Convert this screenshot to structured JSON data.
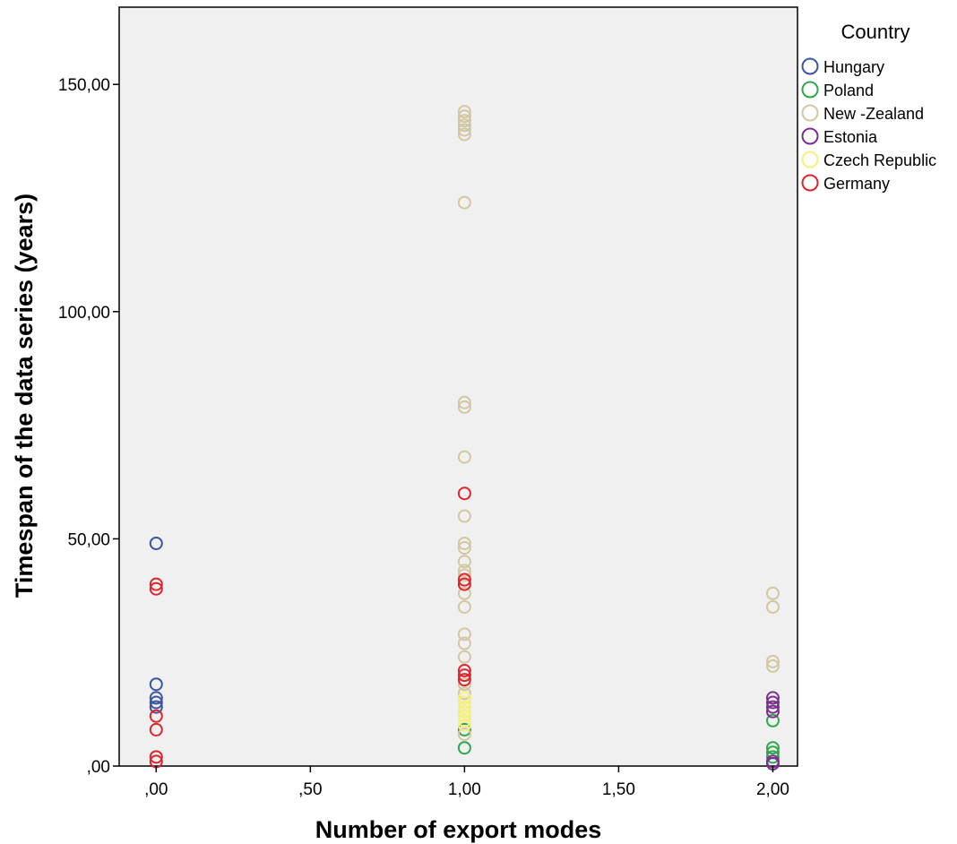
{
  "chart_data": {
    "type": "scatter",
    "xlabel": "Number of export modes",
    "ylabel": "Timespan of the data series (years)",
    "xlim": [
      -0.12,
      2.08
    ],
    "ylim": [
      0,
      167
    ],
    "x_ticks": [
      {
        "value": 0,
        "label": ",00"
      },
      {
        "value": 0.5,
        "label": ",50"
      },
      {
        "value": 1,
        "label": "1,00"
      },
      {
        "value": 1.5,
        "label": "1,50"
      },
      {
        "value": 2,
        "label": "2,00"
      }
    ],
    "y_ticks": [
      {
        "value": 0,
        "label": ",00"
      },
      {
        "value": 50,
        "label": "50,00"
      },
      {
        "value": 100,
        "label": "100,00"
      },
      {
        "value": 150,
        "label": "150,00"
      }
    ],
    "grid": false,
    "background_color": "#f0f0f0",
    "marker": "open-circle",
    "legend": {
      "title": "Country",
      "placement": "right"
    },
    "series": [
      {
        "name": "Hungary",
        "color": "#3a55a4",
        "points": [
          [
            0,
            49
          ],
          [
            0,
            18
          ],
          [
            0,
            15
          ],
          [
            0,
            14
          ],
          [
            0,
            13
          ]
        ]
      },
      {
        "name": "Poland",
        "color": "#2ea84a",
        "points": [
          [
            1,
            8
          ],
          [
            1,
            4
          ],
          [
            2,
            10
          ],
          [
            2,
            4
          ],
          [
            2,
            3
          ],
          [
            2,
            2
          ]
        ]
      },
      {
        "name": "New -Zealand",
        "color": "#d2c7a0",
        "points": [
          [
            1,
            144
          ],
          [
            1,
            143
          ],
          [
            1,
            142
          ],
          [
            1,
            141
          ],
          [
            1,
            140
          ],
          [
            1,
            139
          ],
          [
            1,
            124
          ],
          [
            1,
            80
          ],
          [
            1,
            79
          ],
          [
            1,
            68
          ],
          [
            1,
            55
          ],
          [
            1,
            49
          ],
          [
            1,
            48
          ],
          [
            1,
            45
          ],
          [
            1,
            43
          ],
          [
            1,
            42
          ],
          [
            1,
            40
          ],
          [
            1,
            38
          ],
          [
            1,
            35
          ],
          [
            1,
            29
          ],
          [
            1,
            27
          ],
          [
            1,
            24
          ],
          [
            1,
            18
          ],
          [
            1,
            16
          ],
          [
            1,
            7
          ],
          [
            2,
            38
          ],
          [
            2,
            35
          ],
          [
            2,
            23
          ],
          [
            2,
            22
          ]
        ]
      },
      {
        "name": "Estonia",
        "color": "#7b2f8f",
        "points": [
          [
            2,
            15
          ],
          [
            2,
            14
          ],
          [
            2,
            13
          ],
          [
            2,
            12
          ],
          [
            2,
            1
          ],
          [
            2,
            0.5
          ]
        ]
      },
      {
        "name": "Czech Republic",
        "color": "#f5f07a",
        "points": [
          [
            1,
            15
          ],
          [
            1,
            14
          ],
          [
            1,
            13
          ],
          [
            1,
            12
          ],
          [
            1,
            11
          ],
          [
            1,
            10
          ],
          [
            1,
            9
          ]
        ]
      },
      {
        "name": "Germany",
        "color": "#e0242e",
        "points": [
          [
            0,
            40
          ],
          [
            0,
            39
          ],
          [
            0,
            11
          ],
          [
            0,
            8
          ],
          [
            0,
            2
          ],
          [
            0,
            1
          ],
          [
            1,
            60
          ],
          [
            1,
            41
          ],
          [
            1,
            40
          ],
          [
            1,
            21
          ],
          [
            1,
            20
          ],
          [
            1,
            19
          ]
        ]
      }
    ]
  }
}
